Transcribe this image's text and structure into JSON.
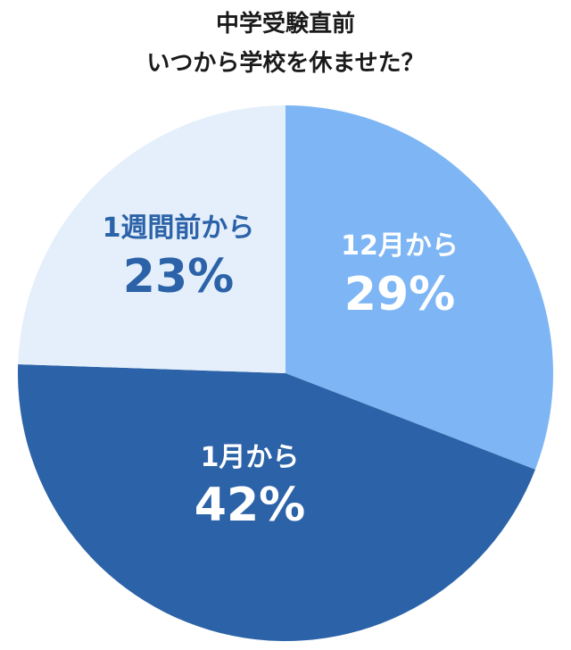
{
  "chart_data": {
    "type": "pie",
    "title": [
      "中学受験直前",
      "いつから学校を休ませた？"
    ],
    "slices": [
      {
        "label": "12月から",
        "value": 29,
        "value_text": "29%",
        "color": "#7eb6f5",
        "text_color": "#ffffff"
      },
      {
        "label": "1月から",
        "value": 42,
        "value_text": "42%",
        "color": "#2c63a8",
        "text_color": "#ffffff"
      },
      {
        "label": "1週間前から",
        "value": 23,
        "value_text": "23%",
        "color": "#e4effb",
        "text_color": "#2c63a8"
      }
    ]
  }
}
